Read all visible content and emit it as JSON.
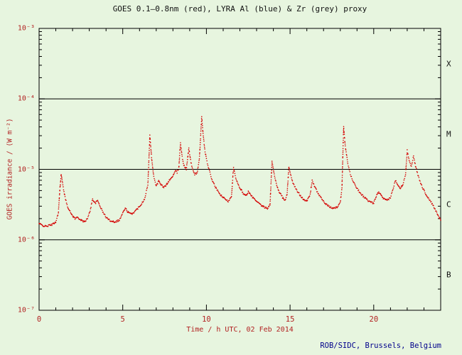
{
  "page": {
    "credit": "ROB/SIDC, Brussels, Belgium"
  },
  "chart_data": {
    "type": "scatter",
    "title": "GOES 0.1–0.8nm (red), LYRA Al (blue) & Zr (grey) proxy",
    "xlabel": "Time / h UTC, 02 Feb 2014",
    "ylabel": "GOES irradiance / (W m⁻²)",
    "grid": "off",
    "legend": "none (colors named in title)",
    "x_axis": {
      "min": 0,
      "max": 24,
      "major_tick_step": 5,
      "minor_tick_step": 1,
      "tick_labels": [
        {
          "value": 0,
          "label": "0"
        },
        {
          "value": 5,
          "label": "5"
        },
        {
          "value": 10,
          "label": "10"
        },
        {
          "value": 15,
          "label": "15"
        },
        {
          "value": 20,
          "label": "20"
        }
      ]
    },
    "y_axis": {
      "scale": "log",
      "min": 1e-07,
      "max": 0.001,
      "tick_labels": [
        {
          "value": 0.001,
          "label": "10⁻³"
        },
        {
          "value": 0.0001,
          "label": "10⁻⁴"
        },
        {
          "value": 1e-05,
          "label": "10⁻⁵"
        },
        {
          "value": 1e-06,
          "label": "10⁻⁶"
        },
        {
          "value": 1e-07,
          "label": "10⁻⁷"
        }
      ]
    },
    "reference_lines": [
      0.0001,
      1e-05,
      1e-06
    ],
    "flare_class_bands": [
      {
        "label": "X",
        "lo": 0.0001,
        "hi": 0.001
      },
      {
        "label": "M",
        "lo": 1e-05,
        "hi": 0.0001
      },
      {
        "label": "C",
        "lo": 1e-06,
        "hi": 1e-05
      },
      {
        "label": "B",
        "lo": 1e-07,
        "hi": 1e-06
      }
    ],
    "colors": {
      "background": "#e7f5df",
      "frame": "#000000",
      "tick_text": "#b22222",
      "title_text": "#111111",
      "credit_text": "#00008b",
      "goes_series": "#d40000"
    },
    "series": [
      {
        "name": "GOES 0.1-0.8nm",
        "color": "#d40000",
        "style": "dotted",
        "points": [
          [
            0.0,
            1.7e-06
          ],
          [
            0.2,
            1.6e-06
          ],
          [
            0.4,
            1.55e-06
          ],
          [
            0.6,
            1.6e-06
          ],
          [
            0.8,
            1.65e-06
          ],
          [
            1.0,
            1.8e-06
          ],
          [
            1.15,
            2.4e-06
          ],
          [
            1.25,
            5.5e-06
          ],
          [
            1.32,
            8.5e-06
          ],
          [
            1.42,
            6e-06
          ],
          [
            1.55,
            4e-06
          ],
          [
            1.7,
            3e-06
          ],
          [
            1.85,
            2.5e-06
          ],
          [
            2.0,
            2.2e-06
          ],
          [
            2.15,
            2e-06
          ],
          [
            2.3,
            2.1e-06
          ],
          [
            2.5,
            1.9e-06
          ],
          [
            2.7,
            1.8e-06
          ],
          [
            2.9,
            2e-06
          ],
          [
            3.05,
            2.6e-06
          ],
          [
            3.2,
            3.8e-06
          ],
          [
            3.35,
            3.3e-06
          ],
          [
            3.5,
            3.6e-06
          ],
          [
            3.65,
            3e-06
          ],
          [
            3.8,
            2.5e-06
          ],
          [
            4.0,
            2.1e-06
          ],
          [
            4.2,
            1.9e-06
          ],
          [
            4.5,
            1.8e-06
          ],
          [
            4.8,
            1.9e-06
          ],
          [
            5.0,
            2.4e-06
          ],
          [
            5.15,
            2.8e-06
          ],
          [
            5.3,
            2.5e-06
          ],
          [
            5.5,
            2.3e-06
          ],
          [
            5.7,
            2.5e-06
          ],
          [
            5.9,
            2.8e-06
          ],
          [
            6.1,
            3.2e-06
          ],
          [
            6.3,
            3.8e-06
          ],
          [
            6.5,
            6e-06
          ],
          [
            6.62,
            3e-05
          ],
          [
            6.72,
            1.5e-05
          ],
          [
            6.85,
            8e-06
          ],
          [
            7.0,
            5.8e-06
          ],
          [
            7.15,
            6.8e-06
          ],
          [
            7.3,
            6e-06
          ],
          [
            7.45,
            5.5e-06
          ],
          [
            7.6,
            6e-06
          ],
          [
            7.75,
            6.8e-06
          ],
          [
            7.9,
            7.5e-06
          ],
          [
            8.05,
            8.5e-06
          ],
          [
            8.15,
            9.5e-06
          ],
          [
            8.25,
            9e-06
          ],
          [
            8.35,
            1.05e-05
          ],
          [
            8.45,
            2.4e-05
          ],
          [
            8.55,
            1.5e-05
          ],
          [
            8.65,
            1.15e-05
          ],
          [
            8.8,
            1e-05
          ],
          [
            8.95,
            2e-05
          ],
          [
            9.05,
            1.35e-05
          ],
          [
            9.15,
            1.05e-05
          ],
          [
            9.3,
            8.5e-06
          ],
          [
            9.45,
            9e-06
          ],
          [
            9.58,
            1.4e-05
          ],
          [
            9.66,
            3.2e-05
          ],
          [
            9.72,
            5.5e-05
          ],
          [
            9.8,
            3.2e-05
          ],
          [
            9.9,
            1.9e-05
          ],
          [
            10.0,
            1.4e-05
          ],
          [
            10.15,
            1e-05
          ],
          [
            10.3,
            7.5e-06
          ],
          [
            10.5,
            5.8e-06
          ],
          [
            10.7,
            4.8e-06
          ],
          [
            10.9,
            4.2e-06
          ],
          [
            11.1,
            3.8e-06
          ],
          [
            11.3,
            3.5e-06
          ],
          [
            11.5,
            4.2e-06
          ],
          [
            11.62,
            1.05e-05
          ],
          [
            11.75,
            7.5e-06
          ],
          [
            11.9,
            6e-06
          ],
          [
            12.05,
            5.2e-06
          ],
          [
            12.2,
            4.6e-06
          ],
          [
            12.35,
            4.2e-06
          ],
          [
            12.5,
            4.8e-06
          ],
          [
            12.65,
            4.3e-06
          ],
          [
            12.85,
            3.8e-06
          ],
          [
            13.05,
            3.4e-06
          ],
          [
            13.25,
            3.1e-06
          ],
          [
            13.45,
            2.9e-06
          ],
          [
            13.65,
            2.8e-06
          ],
          [
            13.8,
            3.1e-06
          ],
          [
            13.92,
            1.3e-05
          ],
          [
            14.05,
            8.5e-06
          ],
          [
            14.2,
            6e-06
          ],
          [
            14.35,
            4.8e-06
          ],
          [
            14.55,
            4e-06
          ],
          [
            14.7,
            3.6e-06
          ],
          [
            14.82,
            4.4e-06
          ],
          [
            14.93,
            1.1e-05
          ],
          [
            15.05,
            8e-06
          ],
          [
            15.2,
            6.2e-06
          ],
          [
            15.4,
            5e-06
          ],
          [
            15.6,
            4.3e-06
          ],
          [
            15.8,
            3.8e-06
          ],
          [
            16.0,
            3.5e-06
          ],
          [
            16.2,
            4.4e-06
          ],
          [
            16.32,
            7e-06
          ],
          [
            16.45,
            5.8e-06
          ],
          [
            16.6,
            4.9e-06
          ],
          [
            16.8,
            4.1e-06
          ],
          [
            17.0,
            3.5e-06
          ],
          [
            17.2,
            3.1e-06
          ],
          [
            17.4,
            2.9e-06
          ],
          [
            17.6,
            2.8e-06
          ],
          [
            17.8,
            2.9e-06
          ],
          [
            18.0,
            3.4e-06
          ],
          [
            18.1,
            5.5e-06
          ],
          [
            18.2,
            4e-05
          ],
          [
            18.3,
            2.1e-05
          ],
          [
            18.45,
            1.2e-05
          ],
          [
            18.6,
            8.5e-06
          ],
          [
            18.8,
            6.5e-06
          ],
          [
            19.0,
            5.4e-06
          ],
          [
            19.2,
            4.6e-06
          ],
          [
            19.4,
            4.1e-06
          ],
          [
            19.6,
            3.7e-06
          ],
          [
            19.8,
            3.4e-06
          ],
          [
            20.0,
            3.3e-06
          ],
          [
            20.15,
            4.2e-06
          ],
          [
            20.3,
            4.8e-06
          ],
          [
            20.45,
            4.2e-06
          ],
          [
            20.6,
            3.8e-06
          ],
          [
            20.8,
            3.6e-06
          ],
          [
            21.0,
            4e-06
          ],
          [
            21.15,
            5.2e-06
          ],
          [
            21.3,
            7e-06
          ],
          [
            21.45,
            6e-06
          ],
          [
            21.6,
            5.4e-06
          ],
          [
            21.75,
            6.2e-06
          ],
          [
            21.9,
            8.5e-06
          ],
          [
            22.0,
            1.85e-05
          ],
          [
            22.12,
            1.35e-05
          ],
          [
            22.25,
            1.1e-05
          ],
          [
            22.38,
            1.55e-05
          ],
          [
            22.52,
            1.05e-05
          ],
          [
            22.7,
            7.5e-06
          ],
          [
            22.9,
            5.6e-06
          ],
          [
            23.1,
            4.5e-06
          ],
          [
            23.3,
            3.8e-06
          ],
          [
            23.5,
            3.2e-06
          ],
          [
            23.7,
            2.6e-06
          ],
          [
            23.85,
            2.2e-06
          ],
          [
            24.0,
            1.9e-06
          ]
        ]
      }
    ]
  }
}
